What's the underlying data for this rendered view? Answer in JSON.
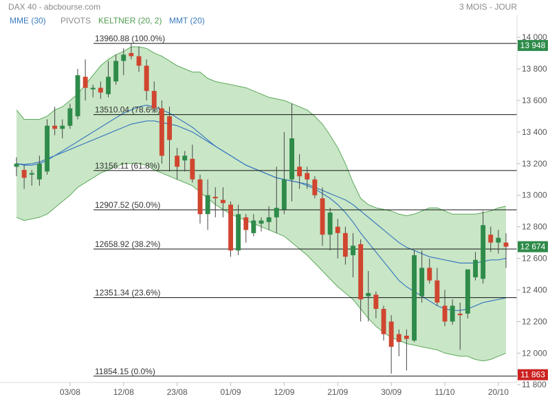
{
  "header": {
    "title": "DAX 40 - abcbourse.com",
    "period": "3 MOIS - JOUR"
  },
  "indicators": [
    {
      "label": "MME (30)",
      "color": "#3a7abf"
    },
    {
      "label": "PIVOTS",
      "color": "#8a8a8a"
    },
    {
      "label": "KELTNER (20, 2)",
      "color": "#4f9a4f"
    },
    {
      "label": "MMT (20)",
      "color": "#3a7abf"
    }
  ],
  "colors": {
    "up": "#2e8b4a",
    "down": "#d0452f",
    "band_fill": "#c9e6c6",
    "band_line": "#5aa95a",
    "ma_line": "#3a7abf",
    "current_badge": "#2e8b4a",
    "low_badge": "#cc2222"
  },
  "chart_data": {
    "type": "candlestick",
    "ylim": [
      11840,
      14040
    ],
    "y_ticks": [
      "14 000",
      "13 800",
      "13 600",
      "13 400",
      "13 200",
      "13 000",
      "12 800",
      "12 600",
      "12 400",
      "12 200",
      "12 000",
      "11 800"
    ],
    "y_tick_values": [
      14000,
      13800,
      13600,
      13400,
      13200,
      13000,
      12800,
      12600,
      12400,
      12200,
      12000,
      11800
    ],
    "x_labels": [
      {
        "label": "03/08",
        "index": 7
      },
      {
        "label": "12/08",
        "index": 14
      },
      {
        "label": "23/08",
        "index": 21
      },
      {
        "label": "01/09",
        "index": 28
      },
      {
        "label": "12/09",
        "index": 35
      },
      {
        "label": "21/09",
        "index": 42
      },
      {
        "label": "30/09",
        "index": 49
      },
      {
        "label": "11/10",
        "index": 56
      },
      {
        "label": "20/10",
        "index": 63
      }
    ],
    "fib_levels": [
      {
        "value": 13960.88,
        "label": "13960.88  (100.0%)"
      },
      {
        "value": 13510.04,
        "label": "13510.04  (78.6%)"
      },
      {
        "value": 13156.11,
        "label": "13156.11  (61.8%)"
      },
      {
        "value": 12907.52,
        "label": "12907.52  (50.0%)"
      },
      {
        "value": 12658.92,
        "label": "12658.92  (38.2%)"
      },
      {
        "value": 12351.34,
        "label": "12351.34  (23.6%)"
      },
      {
        "value": 11854.15,
        "label": "11854.15  (0.0%)"
      }
    ],
    "price_badges": [
      {
        "value": 13948,
        "label": "13 948",
        "kind": "high"
      },
      {
        "value": 12674,
        "label": "12 674",
        "kind": "current"
      },
      {
        "value": 11863,
        "label": "11 863",
        "kind": "low"
      }
    ],
    "candles": [
      [
        13180,
        13240,
        13120,
        13200
      ],
      [
        13160,
        13190,
        13040,
        13110
      ],
      [
        13130,
        13160,
        13060,
        13140
      ],
      [
        13100,
        13250,
        13060,
        13200
      ],
      [
        13150,
        13480,
        13130,
        13440
      ],
      [
        13440,
        13560,
        13380,
        13420
      ],
      [
        13420,
        13480,
        13360,
        13440
      ],
      [
        13440,
        13580,
        13420,
        13550
      ],
      [
        13500,
        13800,
        13480,
        13760
      ],
      [
        13750,
        13860,
        13600,
        13680
      ],
      [
        13670,
        13700,
        13620,
        13680
      ],
      [
        13680,
        13720,
        13610,
        13650
      ],
      [
        13640,
        13850,
        13620,
        13750
      ],
      [
        13720,
        13890,
        13700,
        13850
      ],
      [
        13850,
        13930,
        13760,
        13890
      ],
      [
        13900,
        13960,
        13860,
        13880
      ],
      [
        13880,
        13940,
        13780,
        13820
      ],
      [
        13820,
        13860,
        13600,
        13660
      ],
      [
        13660,
        13720,
        13520,
        13550
      ],
      [
        13550,
        13600,
        13200,
        13250
      ],
      [
        13500,
        13560,
        13150,
        13350
      ],
      [
        13250,
        13300,
        13100,
        13180
      ],
      [
        13220,
        13280,
        13150,
        13250
      ],
      [
        13230,
        13320,
        13080,
        13100
      ],
      [
        13100,
        13130,
        12820,
        12880
      ],
      [
        12880,
        13100,
        12780,
        13000
      ],
      [
        12990,
        13050,
        12860,
        12980
      ],
      [
        12970,
        13050,
        12860,
        12950
      ],
      [
        12940,
        12960,
        12610,
        12650
      ],
      [
        12650,
        12940,
        12620,
        12880
      ],
      [
        12860,
        12880,
        12700,
        12780
      ],
      [
        12760,
        12880,
        12740,
        12840
      ],
      [
        12820,
        12860,
        12770,
        12840
      ],
      [
        12830,
        12930,
        12780,
        12860
      ],
      [
        12860,
        13180,
        12760,
        12920
      ],
      [
        12910,
        13400,
        12880,
        13100
      ],
      [
        13100,
        13580,
        12960,
        13360
      ],
      [
        13180,
        13260,
        13040,
        13120
      ],
      [
        13140,
        13180,
        13040,
        13100
      ],
      [
        13100,
        13120,
        12980,
        13000
      ],
      [
        12980,
        13050,
        12680,
        12750
      ],
      [
        12750,
        12920,
        12650,
        12890
      ],
      [
        12800,
        12850,
        12600,
        12760
      ],
      [
        12760,
        12800,
        12560,
        12610
      ],
      [
        12620,
        12760,
        12480,
        12680
      ],
      [
        12690,
        12720,
        12200,
        12340
      ],
      [
        12360,
        12520,
        12200,
        12380
      ],
      [
        12370,
        12390,
        12220,
        12280
      ],
      [
        12280,
        12300,
        12080,
        12120
      ],
      [
        12200,
        12240,
        11870,
        12040
      ],
      [
        12120,
        12150,
        11980,
        12070
      ],
      [
        12110,
        12150,
        11890,
        12090
      ],
      [
        12080,
        12650,
        12070,
        12620
      ],
      [
        12360,
        12650,
        12320,
        12540
      ],
      [
        12540,
        12600,
        12440,
        12460
      ],
      [
        12460,
        12540,
        12300,
        12320
      ],
      [
        12300,
        12400,
        12170,
        12200
      ],
      [
        12200,
        12340,
        12180,
        12300
      ],
      [
        12250,
        12320,
        12020,
        12240
      ],
      [
        12250,
        12520,
        12220,
        12530
      ],
      [
        12480,
        12640,
        12460,
        12590
      ],
      [
        12470,
        12900,
        12440,
        12810
      ],
      [
        12750,
        12800,
        12640,
        12700
      ],
      [
        12700,
        12780,
        12630,
        12730
      ],
      [
        12700,
        12760,
        12540,
        12674
      ]
    ],
    "keltner_upper": [
      13540,
      13480,
      13480,
      13480,
      13500,
      13540,
      13560,
      13600,
      13640,
      13700,
      13760,
      13820,
      13860,
      13890,
      13910,
      13940,
      13940,
      13930,
      13900,
      13880,
      13850,
      13820,
      13800,
      13780,
      13780,
      13740,
      13720,
      13710,
      13700,
      13690,
      13680,
      13660,
      13640,
      13620,
      13610,
      13600,
      13580,
      13560,
      13540,
      13500,
      13450,
      13380,
      13300,
      13200,
      13080,
      12980,
      12940,
      12920,
      12910,
      12900,
      12880,
      12870,
      12880,
      12900,
      12920,
      12920,
      12900,
      12880,
      12880,
      12880,
      12880,
      12890,
      12900,
      12920,
      12930
    ],
    "keltner_lower": [
      12860,
      12840,
      12850,
      12860,
      12880,
      12920,
      12960,
      13000,
      13050,
      13080,
      13110,
      13140,
      13160,
      13180,
      13200,
      13200,
      13200,
      13190,
      13160,
      13140,
      13120,
      13100,
      13080,
      13060,
      13020,
      12980,
      12940,
      12910,
      12880,
      12860,
      12840,
      12820,
      12800,
      12780,
      12760,
      12740,
      12700,
      12660,
      12620,
      12570,
      12520,
      12470,
      12420,
      12380,
      12340,
      12280,
      12220,
      12170,
      12130,
      12100,
      12080,
      12060,
      12050,
      12040,
      12030,
      12020,
      12000,
      11990,
      11980,
      11980,
      11960,
      11950,
      11960,
      11980,
      12000
    ],
    "mme30": [
      13200,
      13195,
      13200,
      13210,
      13230,
      13250,
      13270,
      13290,
      13310,
      13330,
      13350,
      13370,
      13390,
      13410,
      13430,
      13450,
      13460,
      13470,
      13470,
      13460,
      13450,
      13440,
      13420,
      13400,
      13370,
      13340,
      13310,
      13280,
      13250,
      13220,
      13190,
      13170,
      13150,
      13130,
      13110,
      13100,
      13090,
      13080,
      13070,
      13050,
      13030,
      13010,
      12990,
      12970,
      12940,
      12900,
      12860,
      12820,
      12780,
      12740,
      12700,
      12670,
      12650,
      12630,
      12610,
      12600,
      12590,
      12580,
      12570,
      12570,
      12570,
      12580,
      12590,
      12590,
      12600
    ],
    "mmt20": [
      13200,
      13190,
      13190,
      13200,
      13220,
      13250,
      13280,
      13310,
      13340,
      13370,
      13400,
      13430,
      13460,
      13490,
      13520,
      13540,
      13560,
      13570,
      13560,
      13540,
      13520,
      13490,
      13460,
      13430,
      13390,
      13350,
      13310,
      13280,
      13250,
      13220,
      13190,
      13170,
      13150,
      13130,
      13110,
      13100,
      13090,
      13080,
      13060,
      13040,
      13010,
      12980,
      12940,
      12890,
      12830,
      12760,
      12700,
      12640,
      12580,
      12520,
      12460,
      12420,
      12390,
      12360,
      12330,
      12300,
      12280,
      12270,
      12270,
      12280,
      12300,
      12320,
      12330,
      12340,
      12350
    ]
  }
}
